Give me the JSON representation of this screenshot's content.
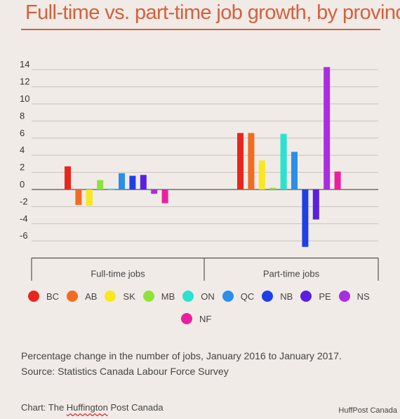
{
  "title": "Full-time vs. part-time job growth, by province",
  "caption": {
    "line1": "Percentage change in the number of jobs, January 2016 to January 2017.",
    "line2": "Source: Statistics Canada Labour Force Survey"
  },
  "credit": {
    "prefix": "Chart: The ",
    "wavy": "Huffington",
    "suffix": " Post Canada"
  },
  "watermark": "HuffPost Canada",
  "chart_data": {
    "type": "bar",
    "categories": [
      "Full-time jobs",
      "Part-time jobs"
    ],
    "series": [
      {
        "name": "BC",
        "color": "#e8261f",
        "values": [
          2.7,
          6.6
        ]
      },
      {
        "name": "AB",
        "color": "#f26b22",
        "values": [
          -1.8,
          6.6
        ]
      },
      {
        "name": "SK",
        "color": "#f9e81c",
        "values": [
          -1.9,
          3.4
        ]
      },
      {
        "name": "MB",
        "color": "#8ee23a",
        "values": [
          1.1,
          0.2
        ]
      },
      {
        "name": "ON",
        "color": "#27e3cf",
        "values": [
          0.1,
          6.5
        ]
      },
      {
        "name": "QC",
        "color": "#2d8ee8",
        "values": [
          1.9,
          4.4
        ]
      },
      {
        "name": "NB",
        "color": "#1f3fe6",
        "values": [
          1.6,
          -6.7
        ]
      },
      {
        "name": "PE",
        "color": "#5b1fe0",
        "values": [
          1.7,
          -3.5
        ]
      },
      {
        "name": "NS",
        "color": "#a92ee0",
        "values": [
          -0.5,
          14.3
        ]
      },
      {
        "name": "NF",
        "color": "#ec1ea0",
        "values": [
          -1.6,
          2.1
        ]
      }
    ],
    "y_ticks": [
      "14",
      "12",
      "10",
      "8",
      "6",
      "4",
      "2",
      "0",
      "-2",
      "-4",
      "-6"
    ],
    "ylim": [
      -7,
      14
    ],
    "grid": true,
    "legend_position": "bottom"
  }
}
